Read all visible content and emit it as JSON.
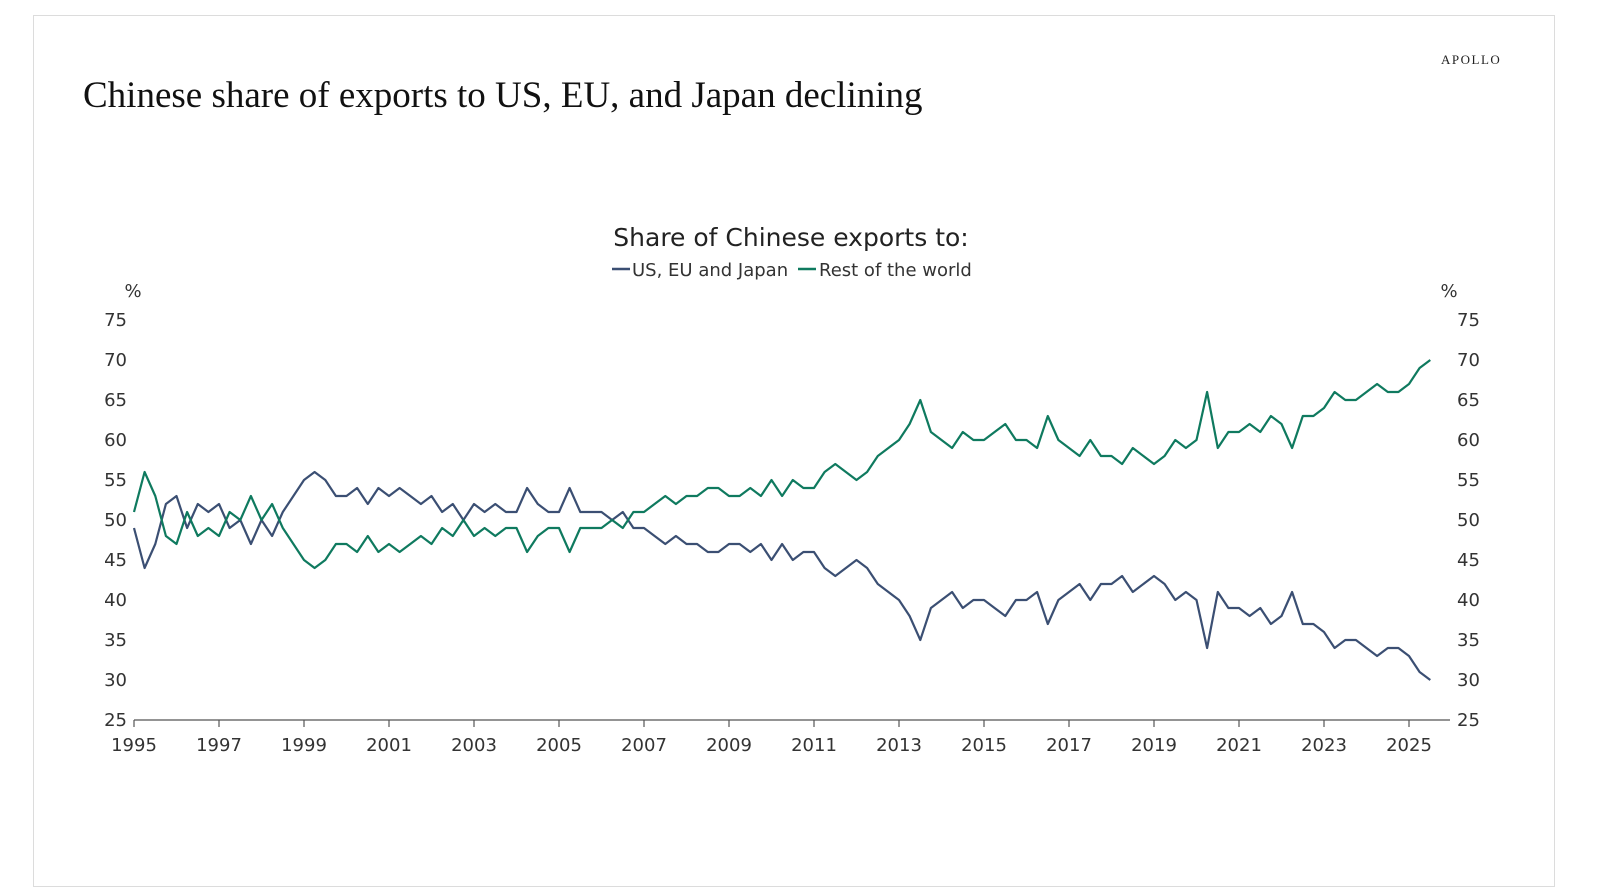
{
  "header": {
    "brand": "APOLLO",
    "title": "Chinese share of  exports to US, EU, and Japan declining"
  },
  "chart_data": {
    "type": "line",
    "title": "Share of Chinese exports to:",
    "ylabel_left": "%",
    "ylabel_right": "%",
    "xlabel": "",
    "ylim": [
      25,
      75
    ],
    "xlim": [
      1995,
      2025.6
    ],
    "yticks": [
      25,
      30,
      35,
      40,
      45,
      50,
      55,
      60,
      65,
      70,
      75
    ],
    "xticks": [
      1995,
      1997,
      1999,
      2001,
      2003,
      2005,
      2007,
      2009,
      2011,
      2013,
      2015,
      2017,
      2019,
      2021,
      2023,
      2025
    ],
    "legend_position": "top-center",
    "x_start": 1995,
    "x_step_years": 0.25,
    "series": [
      {
        "name": "US, EU and Japan",
        "color": "#3b4f73",
        "values": [
          49,
          44,
          47,
          52,
          53,
          49,
          52,
          51,
          52,
          49,
          50,
          47,
          50,
          48,
          51,
          53,
          55,
          56,
          55,
          53,
          53,
          54,
          52,
          54,
          53,
          54,
          53,
          52,
          53,
          51,
          52,
          50,
          52,
          51,
          52,
          51,
          51,
          54,
          52,
          51,
          51,
          54,
          51,
          51,
          51,
          50,
          51,
          49,
          49,
          48,
          47,
          48,
          47,
          47,
          46,
          46,
          47,
          47,
          46,
          47,
          45,
          47,
          45,
          46,
          46,
          44,
          43,
          44,
          45,
          44,
          42,
          41,
          40,
          38,
          35,
          39,
          40,
          41,
          39,
          40,
          40,
          39,
          38,
          40,
          40,
          41,
          37,
          40,
          41,
          42,
          40,
          42,
          42,
          43,
          41,
          42,
          43,
          42,
          40,
          41,
          40,
          34,
          41,
          39,
          39,
          38,
          39,
          37,
          38,
          41,
          37,
          37,
          36,
          34,
          35,
          35,
          34,
          33,
          34,
          34,
          33,
          31,
          30
        ]
      },
      {
        "name": "Rest of the world",
        "color": "#0f7a5f",
        "values": [
          51,
          56,
          53,
          48,
          47,
          51,
          48,
          49,
          48,
          51,
          50,
          53,
          50,
          52,
          49,
          47,
          45,
          44,
          45,
          47,
          47,
          46,
          48,
          46,
          47,
          46,
          47,
          48,
          47,
          49,
          48,
          50,
          48,
          49,
          48,
          49,
          49,
          46,
          48,
          49,
          49,
          46,
          49,
          49,
          49,
          50,
          49,
          51,
          51,
          52,
          53,
          52,
          53,
          53,
          54,
          54,
          53,
          53,
          54,
          53,
          55,
          53,
          55,
          54,
          54,
          56,
          57,
          56,
          55,
          56,
          58,
          59,
          60,
          62,
          65,
          61,
          60,
          59,
          61,
          60,
          60,
          61,
          62,
          60,
          60,
          59,
          63,
          60,
          59,
          58,
          60,
          58,
          58,
          57,
          59,
          58,
          57,
          58,
          60,
          59,
          60,
          66,
          59,
          61,
          61,
          62,
          61,
          63,
          62,
          59,
          63,
          63,
          64,
          66,
          65,
          65,
          66,
          67,
          66,
          66,
          67,
          69,
          70
        ]
      }
    ]
  }
}
